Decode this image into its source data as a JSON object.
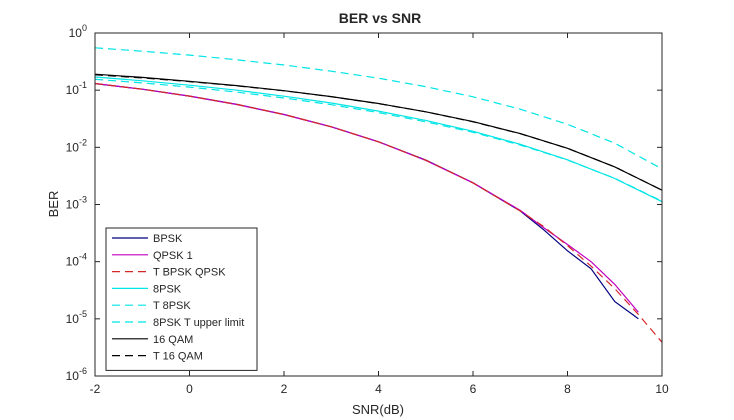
{
  "chart_data": {
    "type": "line",
    "title": "BER vs SNR",
    "xlabel": "SNR(dB)",
    "ylabel": "BER",
    "xlim": [
      -2,
      10
    ],
    "ylim_exponent": [
      -6,
      0
    ],
    "yscale": "log",
    "grid": false,
    "legend_position": "bottom-left",
    "x_ticks": [
      -2,
      0,
      2,
      4,
      6,
      8,
      10
    ],
    "y_tick_base": "10",
    "y_tick_exponents": [
      "-6",
      "-5",
      "-4",
      "-3",
      "-2",
      "-1",
      "0"
    ],
    "series": [
      {
        "name": "BPSK",
        "color": "#000080",
        "dash": "solid",
        "x": [
          -2,
          -1,
          0,
          1,
          2,
          3,
          4,
          5,
          6,
          7,
          7.5,
          8,
          8.5,
          9,
          9.5
        ],
        "y": [
          0.13,
          0.104,
          0.0787,
          0.0563,
          0.0375,
          0.0229,
          0.0125,
          0.006,
          0.0024,
          0.00077,
          0.00036,
          0.000155,
          7.5e-05,
          2e-05,
          1e-05
        ]
      },
      {
        "name": "QPSK 1",
        "color": "#c000c0",
        "dash": "solid",
        "x": [
          -2,
          -1,
          0,
          1,
          2,
          3,
          4,
          5,
          6,
          7,
          7.5,
          8,
          8.5,
          9,
          9.5
        ],
        "y": [
          0.131,
          0.104,
          0.0786,
          0.0562,
          0.0376,
          0.0229,
          0.0125,
          0.0059,
          0.0024,
          0.00079,
          0.00039,
          0.0002,
          0.0001,
          4e-05,
          1.3e-05
        ]
      },
      {
        "name": "T BPSK QPSK",
        "color": "#d62728",
        "dash": "dashed",
        "x": [
          -2,
          -1,
          0,
          1,
          2,
          3,
          4,
          5,
          6,
          7,
          7.5,
          8,
          8.5,
          9,
          9.5,
          10
        ],
        "y": [
          0.131,
          0.104,
          0.0786,
          0.0563,
          0.0375,
          0.0229,
          0.0125,
          0.00595,
          0.00239,
          0.00077,
          0.000409,
          0.000191,
          8.34e-05,
          3.36e-05,
          1.19e-05,
          3.9e-06
        ]
      },
      {
        "name": "8PSK",
        "color": "#00e5e5",
        "dash": "solid",
        "x": [
          -2,
          -1,
          0,
          1,
          2,
          3,
          4,
          5,
          6,
          7,
          8,
          9,
          10
        ],
        "y": [
          0.17,
          0.146,
          0.122,
          0.1,
          0.0785,
          0.0597,
          0.0431,
          0.0296,
          0.0191,
          0.0113,
          0.00605,
          0.00285,
          0.00112
        ]
      },
      {
        "name": "T 8PSK",
        "color": "#00e5e5",
        "dash": "dashed",
        "x": [
          -2,
          -1,
          0,
          1,
          2,
          3,
          4,
          5,
          6,
          7,
          8,
          9,
          10
        ],
        "y": [
          0.155,
          0.134,
          0.113,
          0.0925,
          0.073,
          0.0557,
          0.0405,
          0.028,
          0.0183,
          0.011,
          0.006,
          0.00287,
          0.00114
        ]
      },
      {
        "name": "8PSK T upper limit",
        "color": "#00e5e5",
        "dash": "dashed",
        "x": [
          -2,
          -1,
          0,
          1,
          2,
          3,
          4,
          5,
          6,
          7,
          8,
          9,
          10
        ],
        "y": [
          0.55,
          0.48,
          0.41,
          0.34,
          0.276,
          0.215,
          0.162,
          0.115,
          0.0765,
          0.0465,
          0.0253,
          0.0118,
          0.0042
        ]
      },
      {
        "name": "16 QAM",
        "color": "#000000",
        "dash": "solid",
        "x": [
          -2,
          -1,
          0,
          1,
          2,
          3,
          4,
          5,
          6,
          7,
          8,
          9,
          10
        ],
        "y": [
          0.19,
          0.167,
          0.143,
          0.12,
          0.098,
          0.0773,
          0.0585,
          0.0419,
          0.0282,
          0.0174,
          0.0096,
          0.00455,
          0.00178
        ]
      },
      {
        "name": "T 16 QAM",
        "color": "#000000",
        "dash": "dashed",
        "x": [
          -2,
          -1,
          0,
          1,
          2,
          3,
          4,
          5,
          6,
          7,
          8,
          9,
          10
        ],
        "y": [
          0.186,
          0.164,
          0.141,
          0.119,
          0.0973,
          0.077,
          0.0583,
          0.0418,
          0.028,
          0.0173,
          0.0096,
          0.00455,
          0.00178
        ]
      }
    ]
  }
}
